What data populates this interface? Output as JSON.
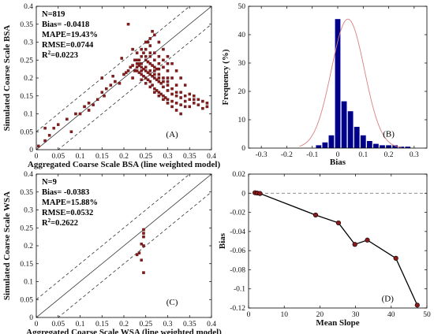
{
  "chart_data": [
    {
      "id": "A",
      "type": "scatter",
      "panel_label": "(A)",
      "xlabel": "Aggregated Coarse Scale BSA (line weighted model)",
      "ylabel": "Simulated Coarse Scale BSA",
      "xlim": [
        0,
        0.4
      ],
      "ylim": [
        0,
        0.4
      ],
      "xticks": [
        "0",
        "0.05",
        "0.1",
        "0.15",
        "0.2",
        "0.25",
        "0.3",
        "0.35",
        "0.4"
      ],
      "yticks": [
        "0",
        "0.05",
        "0.1",
        "0.15",
        "0.2",
        "0.25",
        "0.3",
        "0.35",
        "0.4"
      ],
      "stats": [
        "N=819",
        "Bias= -0.0418",
        "MAPE=19.43%",
        "RMSE=0.0744",
        "R²=0.0223"
      ],
      "reference_lines": [
        {
          "style": "solid",
          "slope": 1,
          "intercept": 0
        },
        {
          "style": "dashed",
          "slope": 1,
          "intercept": 0.05
        },
        {
          "style": "dashed",
          "slope": 1,
          "intercept": -0.05
        }
      ],
      "marker_color": "#8b1a1a",
      "points": [
        [
          0.005,
          0.01
        ],
        [
          0.02,
          0.025
        ],
        [
          0.03,
          0.04
        ],
        [
          0.04,
          0.06
        ],
        [
          0.05,
          0.07
        ],
        [
          0.07,
          0.085
        ],
        [
          0.08,
          0.05
        ],
        [
          0.09,
          0.1
        ],
        [
          0.1,
          0.1
        ],
        [
          0.11,
          0.12
        ],
        [
          0.12,
          0.11
        ],
        [
          0.12,
          0.13
        ],
        [
          0.13,
          0.125
        ],
        [
          0.14,
          0.14
        ],
        [
          0.15,
          0.16
        ],
        [
          0.155,
          0.15
        ],
        [
          0.16,
          0.17
        ],
        [
          0.17,
          0.18
        ],
        [
          0.18,
          0.19
        ],
        [
          0.19,
          0.185
        ],
        [
          0.2,
          0.21
        ],
        [
          0.205,
          0.215
        ],
        [
          0.21,
          0.22
        ],
        [
          0.215,
          0.23
        ],
        [
          0.22,
          0.235
        ],
        [
          0.225,
          0.22
        ],
        [
          0.23,
          0.24
        ],
        [
          0.235,
          0.25
        ],
        [
          0.24,
          0.26
        ],
        [
          0.245,
          0.27
        ],
        [
          0.25,
          0.28
        ],
        [
          0.255,
          0.3
        ],
        [
          0.26,
          0.29
        ],
        [
          0.265,
          0.33
        ],
        [
          0.21,
          0.35
        ],
        [
          0.175,
          0.205
        ],
        [
          0.02,
          0.06
        ],
        [
          0.15,
          0.2
        ],
        [
          0.195,
          0.255
        ],
        [
          0.22,
          0.28
        ],
        [
          0.23,
          0.22
        ],
        [
          0.235,
          0.215
        ],
        [
          0.24,
          0.21
        ],
        [
          0.245,
          0.205
        ],
        [
          0.25,
          0.2
        ],
        [
          0.255,
          0.195
        ],
        [
          0.26,
          0.19
        ],
        [
          0.265,
          0.18
        ],
        [
          0.27,
          0.17
        ],
        [
          0.275,
          0.165
        ],
        [
          0.28,
          0.16
        ],
        [
          0.285,
          0.155
        ],
        [
          0.29,
          0.15
        ],
        [
          0.295,
          0.145
        ],
        [
          0.3,
          0.14
        ],
        [
          0.31,
          0.135
        ],
        [
          0.32,
          0.13
        ],
        [
          0.33,
          0.125
        ],
        [
          0.34,
          0.12
        ],
        [
          0.35,
          0.12
        ],
        [
          0.36,
          0.13
        ],
        [
          0.37,
          0.125
        ],
        [
          0.38,
          0.115
        ],
        [
          0.39,
          0.12
        ],
        [
          0.25,
          0.23
        ],
        [
          0.26,
          0.22
        ],
        [
          0.27,
          0.2
        ],
        [
          0.28,
          0.19
        ],
        [
          0.29,
          0.175
        ],
        [
          0.3,
          0.165
        ],
        [
          0.31,
          0.155
        ],
        [
          0.32,
          0.15
        ],
        [
          0.33,
          0.145
        ],
        [
          0.34,
          0.135
        ],
        [
          0.35,
          0.14
        ],
        [
          0.36,
          0.15
        ],
        [
          0.3,
          0.18
        ],
        [
          0.31,
          0.17
        ],
        [
          0.32,
          0.16
        ],
        [
          0.27,
          0.22
        ],
        [
          0.28,
          0.21
        ],
        [
          0.29,
          0.2
        ],
        [
          0.3,
          0.19
        ],
        [
          0.25,
          0.25
        ],
        [
          0.26,
          0.24
        ],
        [
          0.27,
          0.23
        ],
        [
          0.28,
          0.225
        ],
        [
          0.24,
          0.23
        ],
        [
          0.24,
          0.24
        ],
        [
          0.25,
          0.26
        ],
        [
          0.26,
          0.27
        ],
        [
          0.27,
          0.25
        ],
        [
          0.28,
          0.24
        ],
        [
          0.29,
          0.23
        ],
        [
          0.3,
          0.22
        ],
        [
          0.31,
          0.2
        ],
        [
          0.32,
          0.18
        ],
        [
          0.33,
          0.16
        ],
        [
          0.34,
          0.15
        ],
        [
          0.35,
          0.155
        ],
        [
          0.36,
          0.14
        ],
        [
          0.37,
          0.14
        ],
        [
          0.38,
          0.135
        ],
        [
          0.39,
          0.13
        ],
        [
          0.23,
          0.25
        ],
        [
          0.23,
          0.23
        ],
        [
          0.235,
          0.235
        ],
        [
          0.245,
          0.225
        ],
        [
          0.255,
          0.215
        ],
        [
          0.265,
          0.205
        ],
        [
          0.275,
          0.195
        ],
        [
          0.285,
          0.185
        ],
        [
          0.24,
          0.195
        ],
        [
          0.25,
          0.185
        ],
        [
          0.26,
          0.175
        ],
        [
          0.27,
          0.16
        ],
        [
          0.28,
          0.15
        ],
        [
          0.29,
          0.14
        ],
        [
          0.3,
          0.13
        ],
        [
          0.31,
          0.12
        ],
        [
          0.32,
          0.11
        ],
        [
          0.33,
          0.1
        ],
        [
          0.22,
          0.2
        ],
        [
          0.225,
          0.25
        ],
        [
          0.23,
          0.27
        ],
        [
          0.24,
          0.28
        ],
        [
          0.25,
          0.3
        ],
        [
          0.26,
          0.31
        ],
        [
          0.27,
          0.32
        ],
        [
          0.28,
          0.3
        ],
        [
          0.29,
          0.28
        ],
        [
          0.3,
          0.26
        ],
        [
          0.31,
          0.24
        ],
        [
          0.32,
          0.22
        ],
        [
          0.33,
          0.2
        ],
        [
          0.34,
          0.18
        ],
        [
          0.26,
          0.26
        ],
        [
          0.27,
          0.27
        ],
        [
          0.28,
          0.26
        ],
        [
          0.29,
          0.25
        ],
        [
          0.3,
          0.24
        ],
        [
          0.28,
          0.2
        ],
        [
          0.29,
          0.19
        ],
        [
          0.3,
          0.2
        ],
        [
          0.25,
          0.22
        ],
        [
          0.26,
          0.21
        ],
        [
          0.27,
          0.21
        ],
        [
          0.24,
          0.22
        ],
        [
          0.235,
          0.24
        ],
        [
          0.255,
          0.245
        ],
        [
          0.265,
          0.235
        ],
        [
          0.275,
          0.225
        ]
      ]
    },
    {
      "id": "B",
      "type": "bar",
      "panel_label": "(B)",
      "xlabel": "Bias",
      "ylabel": "Frequency (%)",
      "xlim": [
        -0.35,
        0.35
      ],
      "ylim": [
        0,
        50
      ],
      "xticks": [
        "-0.3",
        "-0.2",
        "-0.1",
        "0",
        "0.1",
        "0.2",
        "0.3"
      ],
      "yticks": [
        "0",
        "10",
        "20",
        "30",
        "40",
        "50"
      ],
      "bar_color": "#00008b",
      "fit_curve_color": "#d98080",
      "fit_curve": {
        "mean": 0.04,
        "peak": 45.5,
        "sigma": 0.065
      },
      "bin_centers": [
        -0.075,
        -0.05,
        -0.025,
        0,
        0.025,
        0.05,
        0.075,
        0.1,
        0.125,
        0.15,
        0.175,
        0.2,
        0.225,
        0.25,
        0.275
      ],
      "values": [
        1,
        2,
        4.5,
        45.5,
        16.5,
        13,
        7.5,
        4.5,
        2.5,
        1.5,
        1,
        1,
        1,
        0.5,
        0.5
      ]
    },
    {
      "id": "C",
      "type": "scatter",
      "panel_label": "(C)",
      "xlabel": "Aggregated Coarse Scale WSA (line weighted model)",
      "ylabel": "Simulated Coarse Scale WSA",
      "xlim": [
        0,
        0.4
      ],
      "ylim": [
        0,
        0.4
      ],
      "xticks": [
        "0",
        "0.05",
        "0.1",
        "0.15",
        "0.2",
        "0.25",
        "0.3",
        "0.35",
        "0.4"
      ],
      "yticks": [
        "0",
        "0.05",
        "0.1",
        "0.15",
        "0.2",
        "0.25",
        "0.3",
        "0.35",
        "0.4"
      ],
      "stats": [
        "N=9",
        "Bias= -0.0383",
        "MAPE=15.88%",
        "RMSE=0.0532",
        "R²=0.2622"
      ],
      "reference_lines": [
        {
          "style": "solid",
          "slope": 1,
          "intercept": 0
        },
        {
          "style": "dashed",
          "slope": 1,
          "intercept": 0.05
        },
        {
          "style": "dashed",
          "slope": 1,
          "intercept": -0.05
        }
      ],
      "marker_color": "#8b1a1a",
      "points": [
        [
          0.245,
          0.245
        ],
        [
          0.245,
          0.235
        ],
        [
          0.245,
          0.225
        ],
        [
          0.24,
          0.205
        ],
        [
          0.245,
          0.2
        ],
        [
          0.235,
          0.18
        ],
        [
          0.23,
          0.175
        ],
        [
          0.24,
          0.16
        ],
        [
          0.245,
          0.125
        ]
      ]
    },
    {
      "id": "D",
      "type": "line",
      "panel_label": "(D)",
      "xlabel": "Mean Slope",
      "ylabel": "Bias",
      "xlim": [
        0,
        50
      ],
      "ylim": [
        -0.12,
        0.02
      ],
      "xticks": [
        "0",
        "10",
        "20",
        "30",
        "40",
        "50"
      ],
      "yticks": [
        "-0.12",
        "-0.1",
        "-0.08",
        "-0.06",
        "-0.04",
        "-0.02",
        "0",
        "0.02"
      ],
      "zero_line": "dashed",
      "line_color": "#000000",
      "marker_color": "#8b1a1a",
      "x": [
        1.8,
        2.4,
        3.2,
        18.8,
        25.2,
        29.8,
        33.3,
        41.3,
        47.3
      ],
      "y": [
        0.0005,
        0.0002,
        -0.0003,
        -0.0228,
        -0.031,
        -0.0535,
        -0.049,
        -0.068,
        -0.117
      ]
    }
  ]
}
